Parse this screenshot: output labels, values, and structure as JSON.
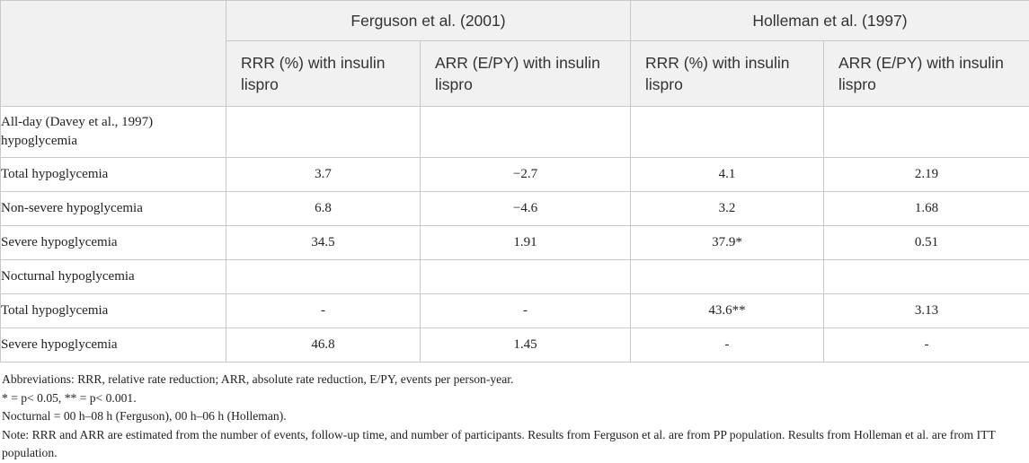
{
  "table": {
    "group_headers": [
      "Ferguson et al. (2001)",
      "Holleman et al. (1997)"
    ],
    "col_headers": [
      "RRR (%) with insulin lispro",
      "ARR (E/PY) with insulin lispro",
      "RRR (%) with insulin lispro",
      "ARR (E/PY) with insulin lispro"
    ],
    "rows": [
      {
        "label": "All-day (Davey et al., 1997) hypoglycemia",
        "values": [
          "",
          "",
          "",
          ""
        ]
      },
      {
        "label": "Total hypoglycemia",
        "values": [
          "3.7",
          "−2.7",
          "4.1",
          "2.19"
        ]
      },
      {
        "label": "Non-severe hypoglycemia",
        "values": [
          "6.8",
          "−4.6",
          "3.2",
          "1.68"
        ]
      },
      {
        "label": "Severe hypoglycemia",
        "values": [
          "34.5",
          "1.91",
          "37.9*",
          "0.51"
        ]
      },
      {
        "label": "Nocturnal hypoglycemia",
        "values": [
          "",
          "",
          "",
          ""
        ]
      },
      {
        "label": "Total hypoglycemia",
        "values": [
          "-",
          "-",
          "43.6**",
          "3.13"
        ]
      },
      {
        "label": "Severe hypoglycemia",
        "values": [
          "46.8",
          "1.45",
          "-",
          "-"
        ]
      }
    ]
  },
  "notes": [
    "Abbreviations: RRR, relative rate reduction; ARR, absolute rate reduction, E/PY, events per person-year.",
    "* = p< 0.05, ** = p< 0.001.",
    "Nocturnal = 00 h–08 h (Ferguson), 00 h–06 h (Holleman).",
    "Note: RRR and ARR are estimated from the number of events, follow-up time, and number of participants. Results from Ferguson et al. are from PP population. Results from Holleman et al. are from ITT population."
  ]
}
